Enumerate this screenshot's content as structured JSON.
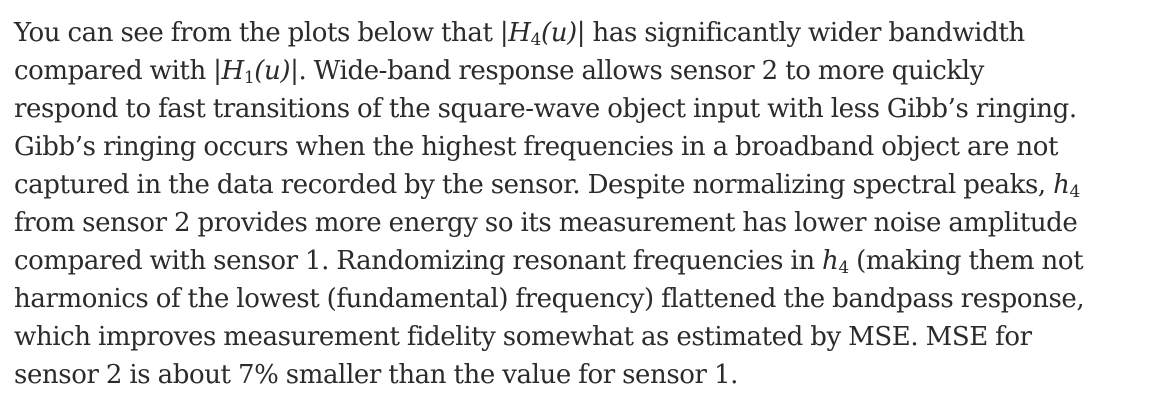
{
  "paragraph": {
    "lines": [
      {
        "text1": "You can see from the plots below that |",
        "math1": "H",
        "sub1": "4",
        "math1b": "(u)",
        "text2": "| has significantly wider bandwidth"
      },
      {
        "text1": "compared with |",
        "math1": "H",
        "sub1": "1",
        "math1b": "(u)",
        "text2": "|. Wide-band response allows sensor 2 to more quickly"
      },
      {
        "text1": "respond to fast transitions of the square-wave object input with less Gibb’s ringing."
      },
      {
        "text1": "Gibb’s ringing occurs when the highest frequencies in a broadband object are not"
      },
      {
        "text1": "captured in the data recorded by the sensor. Despite normalizing spectral peaks, ",
        "math1": "h",
        "sub1": "4"
      },
      {
        "text1": "from sensor 2 provides more energy so its measurement has lower noise amplitude"
      },
      {
        "text1": "compared with sensor 1. Randomizing resonant frequencies in ",
        "math1": "h",
        "sub1": "4",
        "text2": " (making them not"
      },
      {
        "text1": "harmonics of the lowest (fundamental) frequency) flattened the bandpass response,"
      },
      {
        "text1": "which improves measurement fidelity somewhat as estimated by MSE. MSE for"
      },
      {
        "text1": "sensor 2 is about 7% smaller than the value for sensor 1."
      }
    ]
  }
}
